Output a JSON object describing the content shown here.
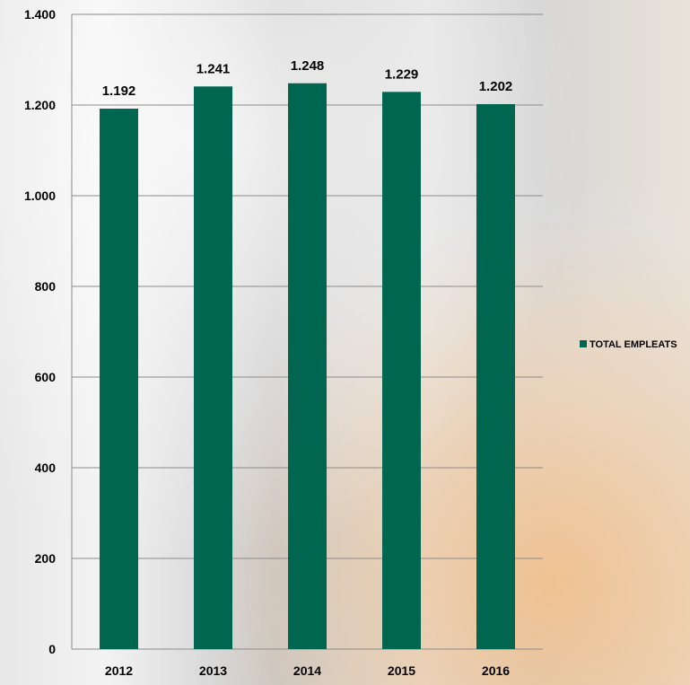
{
  "chart_data": {
    "type": "bar",
    "categories": [
      "2012",
      "2013",
      "2014",
      "2015",
      "2016"
    ],
    "series": [
      {
        "name": "TOTAL EMPLEATS",
        "values": [
          1192,
          1241,
          1248,
          1229,
          1202
        ],
        "value_labels": [
          "1.192",
          "1.241",
          "1.248",
          "1.229",
          "1.202"
        ]
      }
    ],
    "y_ticks": [
      0,
      200,
      400,
      600,
      800,
      1000,
      1200,
      1400
    ],
    "y_tick_labels": [
      "0",
      "200",
      "400",
      "600",
      "800",
      "1.000",
      "1.200",
      "1.400"
    ],
    "ylim": [
      0,
      1400
    ],
    "grid": true,
    "legend_position": "right",
    "colors": {
      "bar": "#006650",
      "grid": "#8c8c8c",
      "axis": "#8c8c8c"
    }
  }
}
